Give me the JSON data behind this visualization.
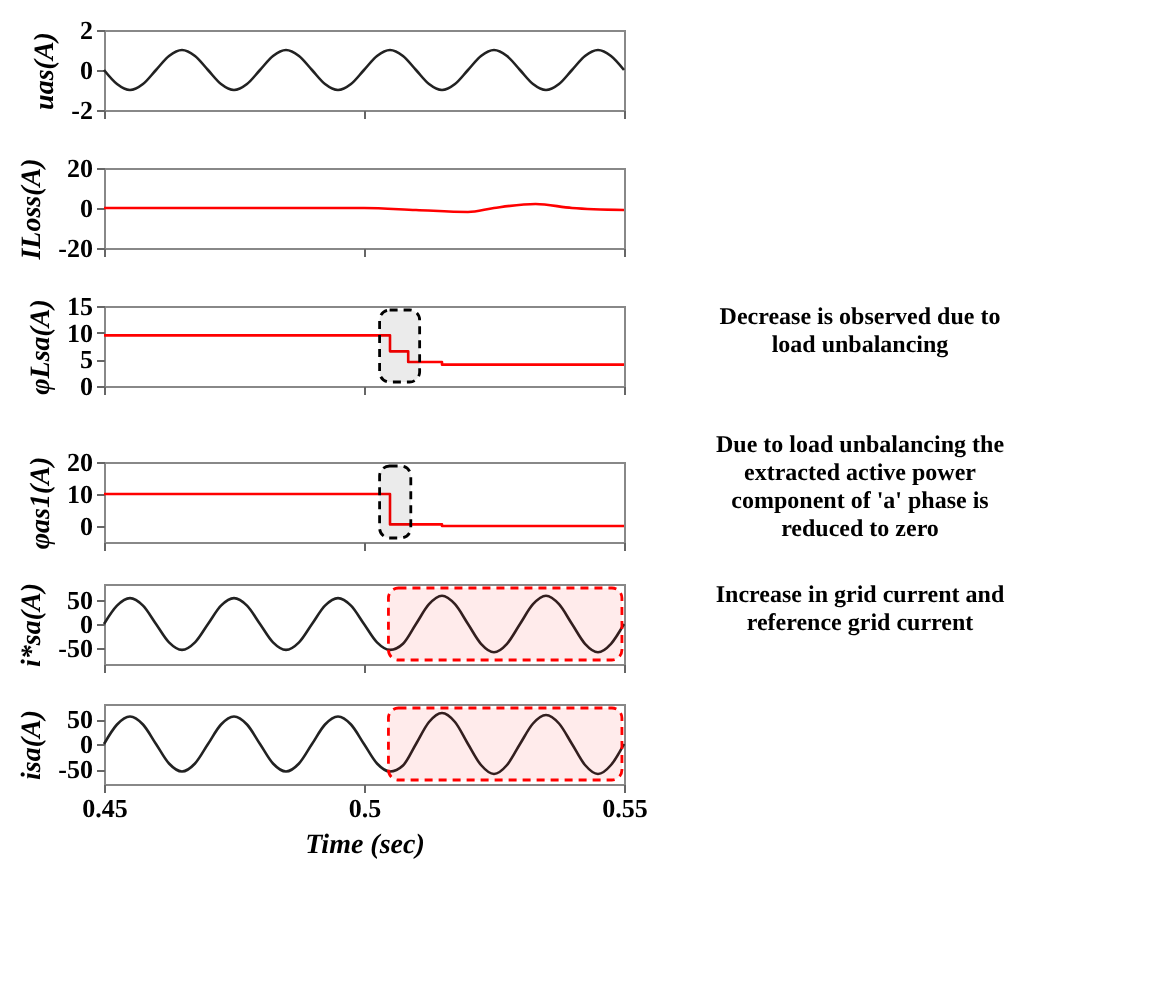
{
  "chart_data": [
    {
      "type": "line",
      "ylabel": "uas(A)",
      "x": [
        0.45,
        0.4525,
        0.455,
        0.4575,
        0.46,
        0.4625,
        0.465,
        0.4675,
        0.47,
        0.4725,
        0.475,
        0.4775,
        0.48,
        0.4825,
        0.485,
        0.4875,
        0.49,
        0.4925,
        0.495,
        0.4975,
        0.5,
        0.5025,
        0.505,
        0.5075,
        0.51,
        0.5125,
        0.515,
        0.5175,
        0.52,
        0.5225,
        0.525,
        0.5275,
        0.53,
        0.5325,
        0.535,
        0.5375,
        0.54,
        0.5425,
        0.545,
        0.5475,
        0.55
      ],
      "series": [
        {
          "color": "#222222",
          "values": [
            0,
            -0.7,
            -1,
            -0.7,
            0,
            0.7,
            1,
            0.7,
            0,
            -0.7,
            -1,
            -0.7,
            0,
            0.7,
            1,
            0.7,
            0,
            -0.7,
            -1,
            -0.7,
            0,
            0.7,
            1,
            0.7,
            0,
            -0.7,
            -1,
            -0.7,
            0,
            0.7,
            1,
            0.7,
            0,
            -0.7,
            -1,
            -0.7,
            0,
            0.7,
            1,
            0.7,
            0
          ]
        }
      ],
      "xlim": [
        0.45,
        0.55
      ],
      "xticks": [
        0.45,
        0.5,
        0.55
      ],
      "ylim": [
        -2,
        2
      ],
      "yticks": [
        -2,
        0,
        2
      ],
      "tick_labels": "y"
    },
    {
      "type": "line",
      "ylabel": "ILoss(A)",
      "x": [
        0.45,
        0.5,
        0.51,
        0.52,
        0.525,
        0.533,
        0.54,
        0.55
      ],
      "series": [
        {
          "color": "#ff0000",
          "values": [
            0,
            0,
            -1,
            -2,
            0,
            2,
            0,
            -1
          ]
        }
      ],
      "xlim": [
        0.45,
        0.55
      ],
      "xticks": [
        0.45,
        0.5,
        0.55
      ],
      "ylim": [
        -20,
        20
      ],
      "yticks": [
        -20,
        0,
        20
      ],
      "tick_labels": "y"
    },
    {
      "type": "step",
      "ylabel": "φLsa(A)",
      "x": [
        0.45,
        0.505,
        0.5085,
        0.515,
        0.55
      ],
      "series": [
        {
          "color": "#ff0000",
          "values": [
            9.5,
            6.5,
            4.5,
            4,
            4
          ]
        }
      ],
      "xlim": [
        0.45,
        0.55
      ],
      "xticks": [
        0.45,
        0.5,
        0.55
      ],
      "ylim": [
        0,
        15
      ],
      "yticks": [
        0,
        5,
        10,
        15
      ],
      "tick_labels": "y",
      "bands": [
        {
          "axis": "x",
          "from": 0.503,
          "to": 0.5107,
          "color": "#000000"
        }
      ],
      "annotations": [
        "Decrease is observed due to load unbalancing"
      ]
    },
    {
      "type": "step",
      "ylabel": "φas1(A)",
      "x": [
        0.45,
        0.505,
        0.515,
        0.55
      ],
      "series": [
        {
          "color": "#ff0000",
          "values": [
            10,
            0.5,
            0,
            0
          ]
        }
      ],
      "xlim": [
        0.45,
        0.55
      ],
      "xticks": [
        0.45,
        0.5,
        0.55
      ],
      "ylim": [
        -5,
        20
      ],
      "yticks": [
        0,
        10,
        20
      ],
      "tick_labels": "y",
      "bands": [
        {
          "axis": "x",
          "from": 0.503,
          "to": 0.509,
          "color": "#000000"
        }
      ],
      "annotations": [
        "Due to load unbalancing the extracted active power component of 'a' phase is reduced to zero"
      ]
    },
    {
      "type": "line",
      "ylabel": "i*sa(A)",
      "x": [
        0.45,
        0.4525,
        0.455,
        0.4575,
        0.46,
        0.4625,
        0.465,
        0.4675,
        0.47,
        0.4725,
        0.475,
        0.4775,
        0.48,
        0.4825,
        0.485,
        0.4875,
        0.49,
        0.4925,
        0.495,
        0.4975,
        0.5,
        0.5025,
        0.505,
        0.5075,
        0.51,
        0.5125,
        0.515,
        0.5175,
        0.52,
        0.5225,
        0.525,
        0.5275,
        0.53,
        0.5325,
        0.535,
        0.5375,
        0.54,
        0.5425,
        0.545,
        0.5475,
        0.55
      ],
      "series": [
        {
          "color": "#222222",
          "values": [
            0,
            39,
            55,
            39,
            0,
            -39,
            -55,
            -39,
            0,
            39,
            55,
            39,
            0,
            -39,
            -55,
            -39,
            0,
            39,
            55,
            39,
            0,
            -39,
            -55,
            -42,
            0,
            42,
            60,
            42,
            0,
            -42,
            -60,
            -42,
            0,
            42,
            60,
            42,
            0,
            -42,
            -60,
            -42,
            0
          ]
        }
      ],
      "xlim": [
        0.45,
        0.55
      ],
      "xticks": [
        0.45,
        0.5,
        0.55
      ],
      "ylim": [
        -85,
        85
      ],
      "yticks": [
        -50,
        0,
        50
      ],
      "tick_labels": "y",
      "bands": [
        {
          "axis": "x",
          "from": 0.5047,
          "to": 0.5496,
          "color": "#ff0000"
        }
      ],
      "annotations": [
        "Increase in grid current and reference grid current"
      ]
    },
    {
      "type": "line",
      "ylabel": "isa(A)",
      "xlabel": "Time (sec)",
      "x": [
        0.45,
        0.4525,
        0.455,
        0.4575,
        0.46,
        0.4625,
        0.465,
        0.4675,
        0.47,
        0.4725,
        0.475,
        0.4775,
        0.48,
        0.4825,
        0.485,
        0.4875,
        0.49,
        0.4925,
        0.495,
        0.4975,
        0.5,
        0.5025,
        0.505,
        0.5075,
        0.51,
        0.5125,
        0.515,
        0.5175,
        0.52,
        0.5225,
        0.525,
        0.5275,
        0.53,
        0.5325,
        0.535,
        0.5375,
        0.54,
        0.5425,
        0.545,
        0.5475,
        0.55
      ],
      "series": [
        {
          "color": "#222222",
          "values": [
            0,
            39,
            55,
            39,
            0,
            -39,
            -55,
            -39,
            0,
            39,
            55,
            39,
            0,
            -39,
            -55,
            -39,
            0,
            39,
            55,
            39,
            0,
            -39,
            -55,
            -43,
            0,
            44,
            62,
            44,
            0,
            -42,
            -60,
            -42,
            0,
            41,
            58,
            41,
            0,
            -42,
            -60,
            -42,
            0
          ]
        }
      ],
      "xlim": [
        0.45,
        0.55
      ],
      "xticks": [
        0.45,
        0.5,
        0.55
      ],
      "ylim": [
        -80,
        80
      ],
      "yticks": [
        -50,
        0,
        50
      ],
      "bands": [
        {
          "axis": "x",
          "from": 0.5047,
          "to": 0.5496,
          "color": "#ff0000"
        }
      ]
    }
  ]
}
